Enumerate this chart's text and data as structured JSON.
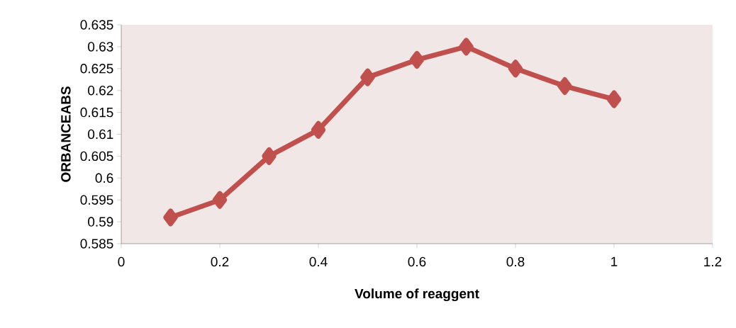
{
  "chart_data": {
    "type": "line",
    "xlabel": "Volume of reaggent",
    "ylabel": "ORBANCEABS",
    "x": [
      0.1,
      0.2,
      0.3,
      0.4,
      0.5,
      0.6,
      0.7,
      0.8,
      0.9,
      1.0
    ],
    "series": [
      {
        "color": "#c0504d",
        "values": [
          0.591,
          0.595,
          0.605,
          0.611,
          0.623,
          0.627,
          0.63,
          0.625,
          0.621,
          0.618
        ]
      }
    ],
    "xlim": [
      0,
      1.2
    ],
    "xticks": [
      0,
      0.2,
      0.4,
      0.6,
      0.8,
      1,
      1.2
    ],
    "ylim": [
      0.585,
      0.635
    ],
    "yticks": [
      0.585,
      0.59,
      0.595,
      0.6,
      0.605,
      0.61,
      0.615,
      0.62,
      0.625,
      0.63,
      0.635
    ],
    "marker": "diamond",
    "line_style": "solid",
    "grid": false
  }
}
